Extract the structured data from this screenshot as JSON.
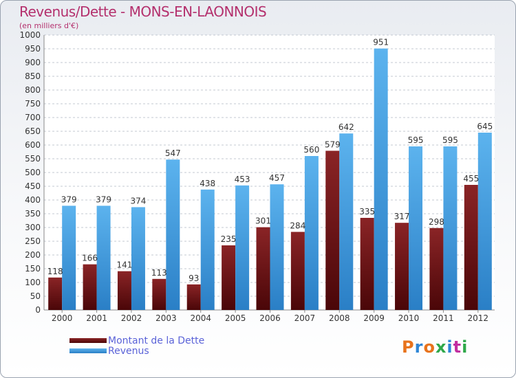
{
  "header": {
    "title": "Revenus/Dette - MONS-EN-LAONNOIS",
    "subtitle": "(en milliers d'€)"
  },
  "chart_data": {
    "type": "bar",
    "categories": [
      "2000",
      "2001",
      "2002",
      "2003",
      "2004",
      "2005",
      "2006",
      "2007",
      "2008",
      "2009",
      "2010",
      "2011",
      "2012"
    ],
    "series": [
      {
        "name": "Montant de la Dette",
        "color": "#7a1416",
        "values": [
          118,
          166,
          141,
          113,
          93,
          235,
          301,
          284,
          579,
          335,
          317,
          298,
          455
        ]
      },
      {
        "name": "Revenus",
        "color": "#3d97dc",
        "values": [
          379,
          379,
          374,
          547,
          438,
          453,
          457,
          560,
          642,
          951,
          595,
          595,
          645
        ]
      }
    ],
    "ylim": [
      0,
      1000
    ],
    "ytick_step": 50,
    "grid": true,
    "legend": "bottom-left"
  },
  "legend": {
    "items": [
      {
        "label": "Montant de la Dette",
        "color": "#7a1416"
      },
      {
        "label": "Revenus",
        "color": "#3d97dc"
      }
    ]
  },
  "logo": {
    "text": "Proxiti",
    "colors": [
      "#e8731c",
      "#2e86d6",
      "#e8731c",
      "#2fa84a",
      "#2e86d6",
      "#c12ea0",
      "#2fa84a"
    ]
  }
}
